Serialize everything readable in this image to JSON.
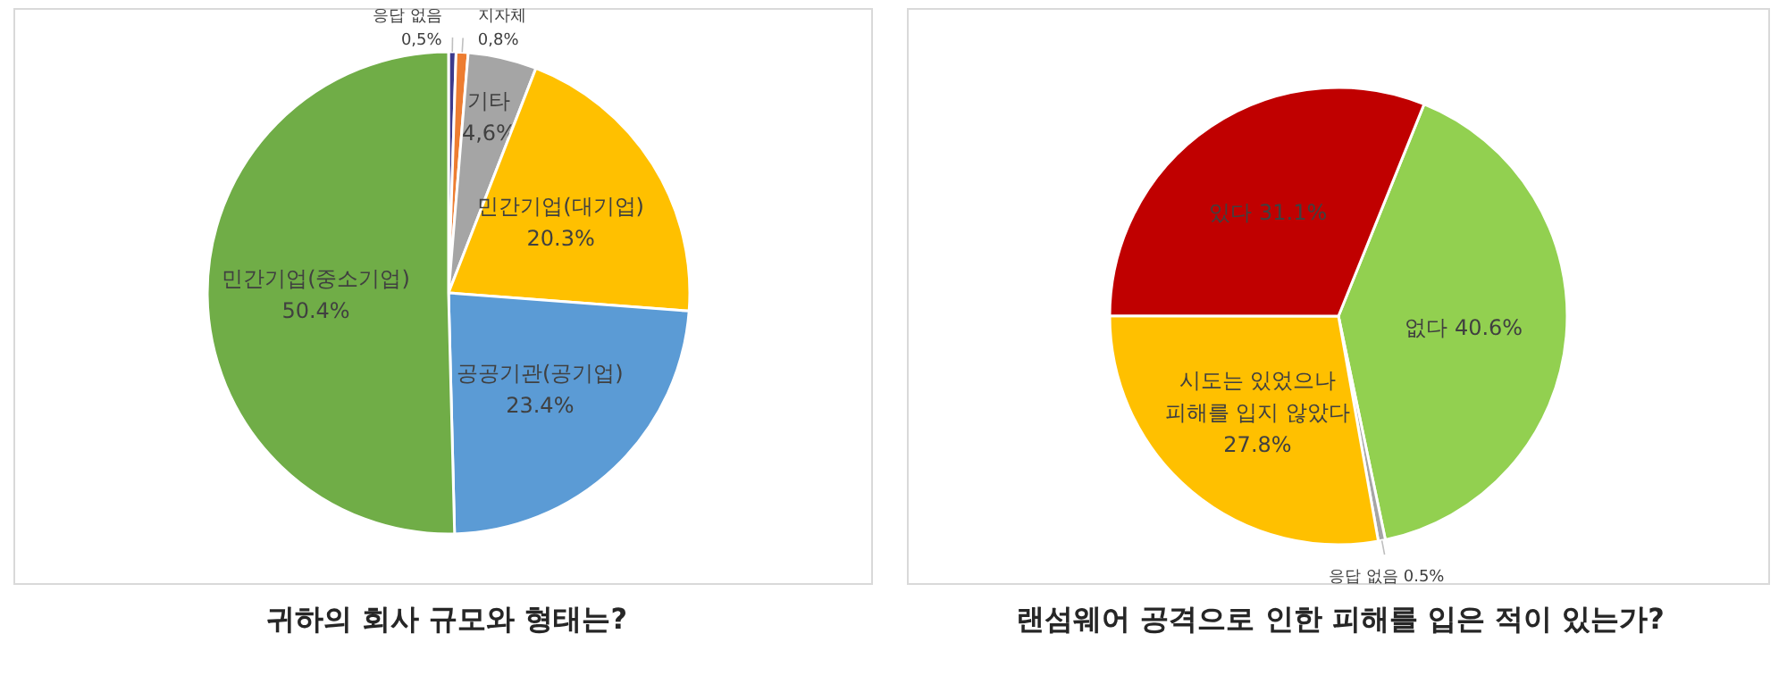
{
  "chart_data": [
    {
      "type": "pie",
      "title": "귀하의 회사 규모와 형태는?",
      "categories": [
        "응답 없음",
        "지자체",
        "기타",
        "민간기업(대기업)",
        "공공기관(공기업)",
        "민간기업(중소기업)"
      ],
      "values": [
        0.5,
        0.8,
        4.6,
        20.3,
        23.4,
        50.4
      ],
      "value_labels": [
        "0,5%",
        "0,8%",
        "4,6%",
        "20.3%",
        "23.4%",
        "50.4%"
      ],
      "colors": [
        "#3d3a8c",
        "#ed7d31",
        "#a5a5a5",
        "#ffc000",
        "#5b9bd5",
        "#70ad47"
      ]
    },
    {
      "type": "pie",
      "title": "랜섬웨어 공격으로 인한 피해를 입은 적이 있는가?",
      "categories": [
        "없다",
        "응답 없음",
        "시도는 있었으나 피해를 입지 않았다",
        "있다"
      ],
      "values": [
        40.6,
        0.5,
        27.8,
        31.1
      ],
      "value_labels": [
        "40.6%",
        "0.5%",
        "27.8%",
        "31.1%"
      ],
      "colors": [
        "#92d050",
        "#a5a5a5",
        "#ffc000",
        "#c00000"
      ]
    }
  ]
}
